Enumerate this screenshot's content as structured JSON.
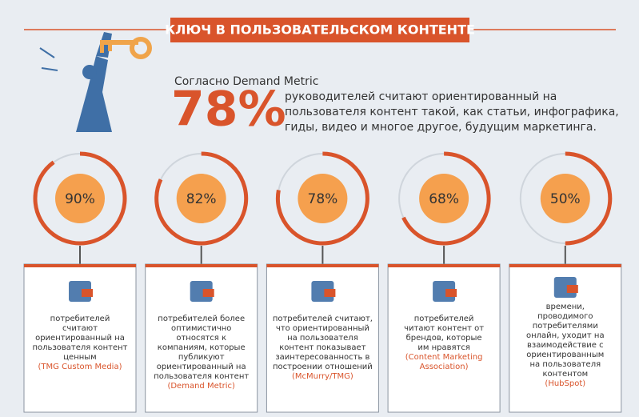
{
  "header": {
    "title": "КЛЮЧ В ПОЛЬЗОВАТЕЛЬСКОМ КОНТЕНТЕ"
  },
  "intro": {
    "lead": "Согласно Demand Metric",
    "big": "78%",
    "lines": [
      "руководителей считают ориентированный на",
      "пользователя контент такой, как статьи, инфографика,",
      "гиды, видео и многое другое, будущим маркетинга."
    ]
  },
  "stats": [
    {
      "value": 90,
      "label": "90%",
      "lines": [
        "потребителей",
        "считают",
        "ориентированный на",
        "пользователя контент",
        "ценным"
      ],
      "source": [
        "(TMG Custom Media)"
      ]
    },
    {
      "value": 82,
      "label": "82%",
      "lines": [
        "потребителей более",
        "оптимистично",
        "относятся к",
        "компаниям, которые",
        "публикуют",
        "ориентированный на",
        "пользователя контент"
      ],
      "source": [
        "(Demand Metric)"
      ]
    },
    {
      "value": 78,
      "label": "78%",
      "lines": [
        "потребителей считают,",
        "что ориентированный",
        "на пользователя",
        "контент показывает",
        "заинтересованность в",
        "построении отношений"
      ],
      "source": [
        "(McMurry/TMG)"
      ]
    },
    {
      "value": 68,
      "label": "68%",
      "lines": [
        "потребителей",
        "читают контент от",
        "брендов, которые",
        "им нравятся"
      ],
      "source": [
        "(Content Marketing",
        "Association)"
      ]
    },
    {
      "value": 50,
      "label": "50%",
      "lines": [
        "времени,",
        "проводимого",
        "потребителями",
        "онлайн, уходит на",
        "взаимодействие с",
        "ориентированным",
        "на пользователя",
        "контентом"
      ],
      "source": [
        "(HubSpot)"
      ]
    }
  ]
}
